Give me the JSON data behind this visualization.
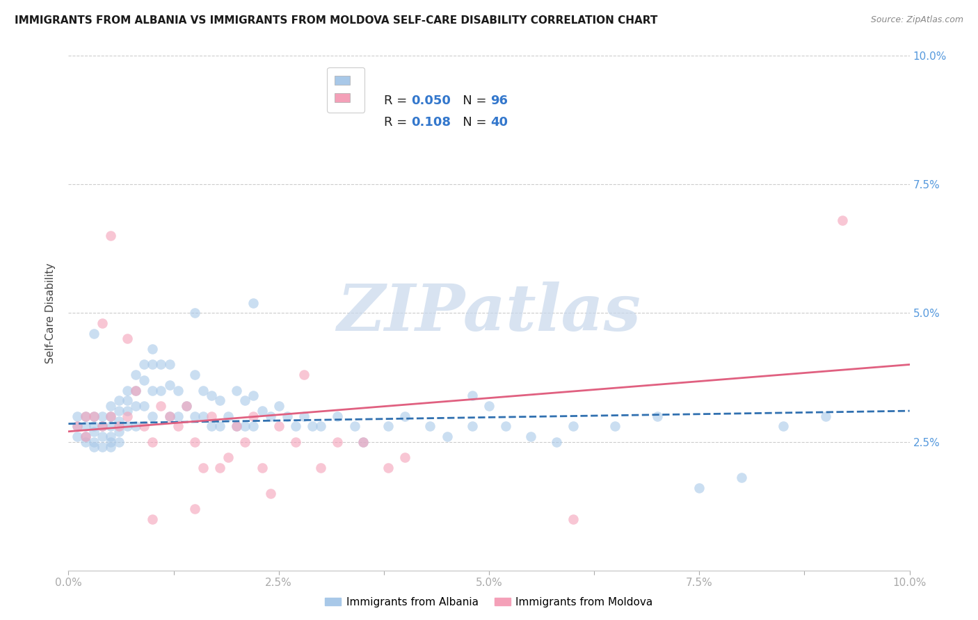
{
  "title": "IMMIGRANTS FROM ALBANIA VS IMMIGRANTS FROM MOLDOVA SELF-CARE DISABILITY CORRELATION CHART",
  "source": "Source: ZipAtlas.com",
  "ylabel": "Self-Care Disability",
  "xlim": [
    0.0,
    0.1
  ],
  "ylim": [
    0.0,
    0.1
  ],
  "xtick_labels": [
    "0.0%",
    "",
    "2.5%",
    "",
    "5.0%",
    "",
    "7.5%",
    "",
    "10.0%"
  ],
  "xtick_vals": [
    0.0,
    0.0125,
    0.025,
    0.0375,
    0.05,
    0.0625,
    0.075,
    0.0875,
    0.1
  ],
  "ytick_labels": [
    "2.5%",
    "5.0%",
    "7.5%",
    "10.0%"
  ],
  "ytick_vals": [
    0.025,
    0.05,
    0.075,
    0.1
  ],
  "albania_color": "#a8c8e8",
  "moldova_color": "#f4a0b8",
  "trendline_albania_color": "#3070b0",
  "trendline_moldova_color": "#e06080",
  "trendline_albania_style": "--",
  "trendline_moldova_style": "-",
  "legend_R_albania": "0.050",
  "legend_N_albania": "96",
  "legend_R_moldova": "0.108",
  "legend_N_moldova": "40",
  "albania_x": [
    0.001,
    0.001,
    0.001,
    0.002,
    0.002,
    0.002,
    0.002,
    0.003,
    0.003,
    0.003,
    0.003,
    0.003,
    0.004,
    0.004,
    0.004,
    0.004,
    0.005,
    0.005,
    0.005,
    0.005,
    0.005,
    0.005,
    0.006,
    0.006,
    0.006,
    0.006,
    0.006,
    0.007,
    0.007,
    0.007,
    0.007,
    0.008,
    0.008,
    0.008,
    0.008,
    0.009,
    0.009,
    0.009,
    0.01,
    0.01,
    0.01,
    0.01,
    0.011,
    0.011,
    0.012,
    0.012,
    0.012,
    0.013,
    0.013,
    0.014,
    0.015,
    0.015,
    0.016,
    0.016,
    0.017,
    0.017,
    0.018,
    0.018,
    0.019,
    0.02,
    0.02,
    0.021,
    0.021,
    0.022,
    0.022,
    0.023,
    0.024,
    0.025,
    0.026,
    0.027,
    0.028,
    0.029,
    0.03,
    0.032,
    0.034,
    0.035,
    0.038,
    0.04,
    0.043,
    0.045,
    0.048,
    0.05,
    0.052,
    0.055,
    0.058,
    0.06,
    0.065,
    0.07,
    0.075,
    0.08,
    0.085,
    0.09,
    0.015,
    0.022,
    0.003,
    0.048
  ],
  "albania_y": [
    0.03,
    0.028,
    0.026,
    0.03,
    0.028,
    0.026,
    0.025,
    0.03,
    0.028,
    0.027,
    0.025,
    0.024,
    0.03,
    0.028,
    0.026,
    0.024,
    0.032,
    0.03,
    0.028,
    0.026,
    0.025,
    0.024,
    0.033,
    0.031,
    0.029,
    0.027,
    0.025,
    0.035,
    0.033,
    0.031,
    0.028,
    0.038,
    0.035,
    0.032,
    0.028,
    0.04,
    0.037,
    0.032,
    0.043,
    0.04,
    0.035,
    0.03,
    0.04,
    0.035,
    0.04,
    0.036,
    0.03,
    0.035,
    0.03,
    0.032,
    0.038,
    0.03,
    0.035,
    0.03,
    0.034,
    0.028,
    0.033,
    0.028,
    0.03,
    0.035,
    0.028,
    0.033,
    0.028,
    0.034,
    0.028,
    0.031,
    0.03,
    0.032,
    0.03,
    0.028,
    0.03,
    0.028,
    0.028,
    0.03,
    0.028,
    0.025,
    0.028,
    0.03,
    0.028,
    0.026,
    0.028,
    0.032,
    0.028,
    0.026,
    0.025,
    0.028,
    0.028,
    0.03,
    0.016,
    0.018,
    0.028,
    0.03,
    0.05,
    0.052,
    0.046,
    0.034
  ],
  "moldova_x": [
    0.001,
    0.002,
    0.002,
    0.003,
    0.004,
    0.004,
    0.005,
    0.005,
    0.006,
    0.007,
    0.007,
    0.008,
    0.009,
    0.01,
    0.011,
    0.012,
    0.013,
    0.014,
    0.015,
    0.016,
    0.017,
    0.018,
    0.019,
    0.02,
    0.021,
    0.022,
    0.023,
    0.024,
    0.025,
    0.027,
    0.028,
    0.03,
    0.032,
    0.035,
    0.038,
    0.04,
    0.01,
    0.015,
    0.092,
    0.06
  ],
  "moldova_y": [
    0.028,
    0.03,
    0.026,
    0.03,
    0.048,
    0.028,
    0.03,
    0.065,
    0.028,
    0.03,
    0.045,
    0.035,
    0.028,
    0.025,
    0.032,
    0.03,
    0.028,
    0.032,
    0.025,
    0.02,
    0.03,
    0.02,
    0.022,
    0.028,
    0.025,
    0.03,
    0.02,
    0.015,
    0.028,
    0.025,
    0.038,
    0.02,
    0.025,
    0.025,
    0.02,
    0.022,
    0.01,
    0.012,
    0.068,
    0.01
  ],
  "trendline_alb_x0": 0.0,
  "trendline_alb_x1": 0.1,
  "trendline_alb_y0": 0.0285,
  "trendline_alb_y1": 0.031,
  "trendline_mol_x0": 0.0,
  "trendline_mol_x1": 0.1,
  "trendline_mol_y0": 0.027,
  "trendline_mol_y1": 0.04,
  "watermark_text": "ZIPatlas",
  "watermark_color": "#c8d8ec",
  "marker_size": 110,
  "alpha": 0.6,
  "right_tick_color": "#5599dd"
}
